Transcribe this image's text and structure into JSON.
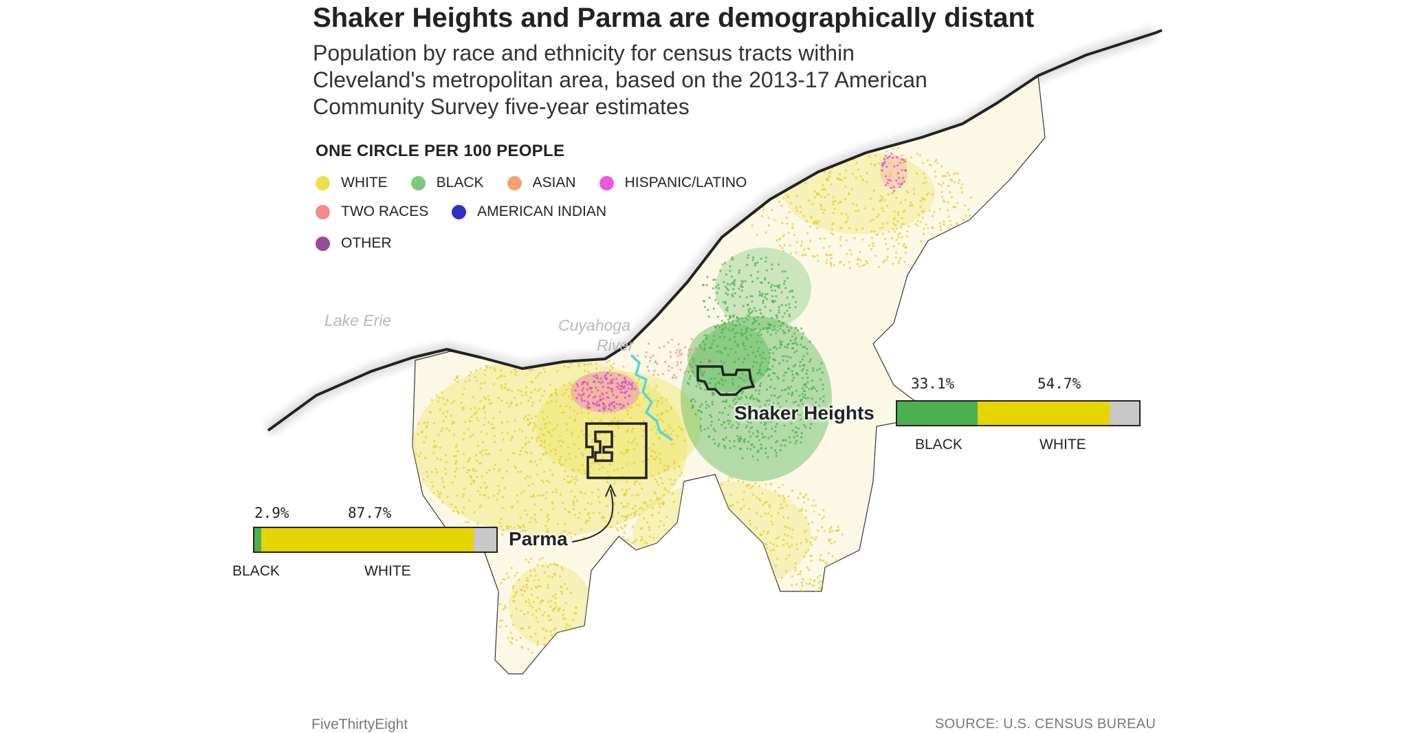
{
  "title": "Shaker Heights and Parma are demographically distant",
  "subtitle": "Population by race and ethnicity for census tracts within Cleveland's metropolitan area, based on the 2013-17 American Community Survey five-year estimates",
  "legend": {
    "title": "ONE CIRCLE PER 100 PEOPLE",
    "rows": [
      [
        {
          "label": "WHITE",
          "color": "#ece24a"
        },
        {
          "label": "BLACK",
          "color": "#7ec77e"
        },
        {
          "label": "ASIAN",
          "color": "#f6a070"
        },
        {
          "label": "HISPANIC/LATINO",
          "color": "#ee55dd"
        }
      ],
      [
        {
          "label": "TWO RACES",
          "color": "#f58a8a"
        },
        {
          "label": "AMERICAN INDIAN",
          "color": "#3030c8"
        }
      ],
      [
        {
          "label": "OTHER",
          "color": "#9a4a9a"
        }
      ]
    ]
  },
  "labels": {
    "lake": "Lake Erie",
    "river_line1": "Cuyahoga",
    "river_line2": "River",
    "shaker": "Shaker Heights",
    "parma": "Parma"
  },
  "bars": {
    "parma": {
      "black_pct_text": "2.9%",
      "white_pct_text": "87.7%",
      "black_pct": 2.9,
      "white_pct": 87.7,
      "black_label": "BLACK",
      "white_label": "WHITE"
    },
    "shaker": {
      "black_pct_text": "33.1%",
      "white_pct_text": "54.7%",
      "black_pct": 33.1,
      "white_pct": 54.7,
      "black_label": "BLACK",
      "white_label": "WHITE"
    }
  },
  "colors": {
    "black_bar": "#4caf50",
    "white_bar": "#e6d400",
    "other_bar": "#c8c8c8",
    "river": "#4fd6e0"
  },
  "footer": {
    "brand": "FiveThirtyEight",
    "source": "SOURCE: U.S. CENSUS BUREAU"
  }
}
